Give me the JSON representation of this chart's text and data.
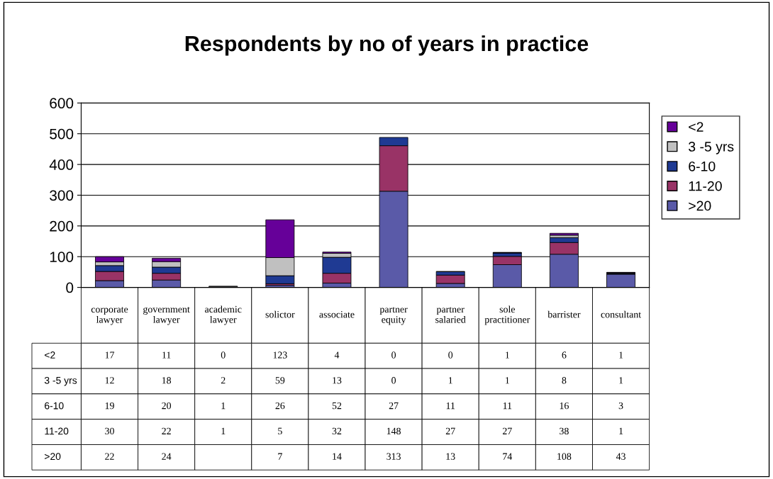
{
  "chart_data": {
    "type": "bar",
    "title": "Respondents by no of years in practice",
    "stacked": true,
    "categories": [
      "corporate lawyer",
      "government lawyer",
      "academic lawyer",
      "solictor",
      "associate",
      "partner equity",
      "partner salaried",
      "sole practitioner",
      "barrister",
      "consultant"
    ],
    "series": [
      {
        "name": ">20",
        "color": "#5a5aa8",
        "values": [
          22,
          24,
          null,
          7,
          14,
          313,
          13,
          74,
          108,
          43
        ]
      },
      {
        "name": "11-20",
        "color": "#993366",
        "values": [
          30,
          22,
          1,
          5,
          32,
          148,
          27,
          27,
          38,
          1
        ]
      },
      {
        "name": "6-10",
        "color": "#1f3a93",
        "values": [
          19,
          20,
          1,
          26,
          52,
          27,
          11,
          11,
          16,
          3
        ]
      },
      {
        "name": "3 -5 yrs",
        "color": "#c0c0c0",
        "values": [
          12,
          18,
          2,
          59,
          13,
          0,
          1,
          1,
          8,
          1
        ]
      },
      {
        "name": "<2",
        "color": "#660099",
        "values": [
          17,
          11,
          0,
          123,
          4,
          0,
          0,
          1,
          6,
          1
        ]
      }
    ],
    "ylim": [
      0,
      600
    ],
    "yticks": [
      0,
      100,
      200,
      300,
      400,
      500,
      600
    ],
    "grid": "y",
    "legend": "right",
    "data_labels": true
  }
}
